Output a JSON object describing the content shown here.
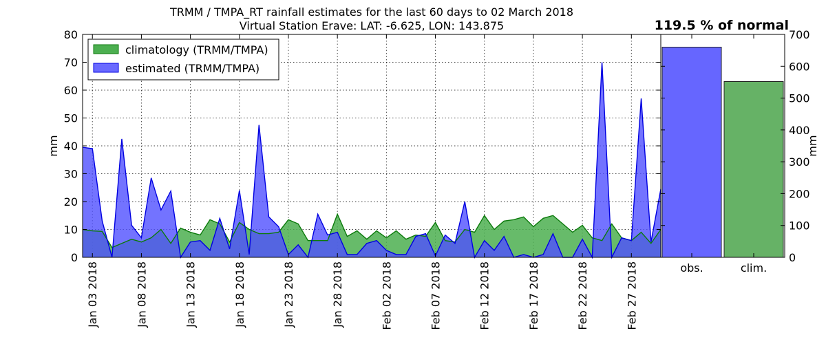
{
  "header": {
    "title_line1": "TRMM / TMPA_RT rainfall estimates for the last 60 days to 02 March 2018",
    "title_line2": "Virtual Station Erave: LAT: -6.625, LON: 143.875",
    "percent_label": "119.5 % of normal"
  },
  "colors": {
    "climatology_fill": "#4caf50",
    "climatology_line": "#0b7a0b",
    "estimated_fill": "#5050ff",
    "estimated_line": "#0000e0"
  },
  "chart_data": [
    {
      "type": "area",
      "ylabel": "mm",
      "ylim": [
        0,
        80
      ],
      "yticks": [
        0,
        10,
        20,
        30,
        40,
        50,
        60,
        70,
        80
      ],
      "grid": true,
      "legend_position": "top-left",
      "start_date": "2018-01-02",
      "xtick_labels": [
        "Jan 03 2018",
        "Jan 08 2018",
        "Jan 13 2018",
        "Jan 18 2018",
        "Jan 23 2018",
        "Jan 28 2018",
        "Feb 02 2018",
        "Feb 07 2018",
        "Feb 12 2018",
        "Feb 17 2018",
        "Feb 22 2018",
        "Feb 27 2018"
      ],
      "series": [
        {
          "name": "climatology (TRMM/TMPA)",
          "values": [
            10,
            9.5,
            9.3,
            3.5,
            5,
            6.5,
            5.5,
            7,
            10,
            5,
            10.5,
            9,
            8,
            13.5,
            12,
            5.5,
            12.5,
            10,
            8.5,
            8.5,
            9,
            13.5,
            12,
            6,
            6,
            6,
            15.5,
            7.5,
            9.5,
            6.5,
            9.5,
            7,
            9.5,
            6.5,
            8,
            7.5,
            12.5,
            6,
            5.5,
            10,
            9,
            15,
            10,
            13,
            13.5,
            14.5,
            11,
            14,
            15,
            12,
            9,
            11.5,
            7,
            6,
            12,
            7,
            6,
            9,
            5,
            10
          ]
        },
        {
          "name": "estimated (TRMM/TMPA)",
          "values": [
            39.5,
            39,
            13,
            0,
            42.5,
            11.5,
            7,
            28.5,
            17,
            23.8,
            0,
            5.5,
            6,
            2.5,
            14,
            3,
            24,
            1,
            47.5,
            14.5,
            11,
            1,
            4.5,
            0,
            15.5,
            8,
            9,
            1,
            1,
            5,
            6,
            2.5,
            1,
            1,
            7.5,
            8.5,
            0.5,
            8,
            5,
            20,
            0,
            6,
            2.5,
            7.5,
            0,
            1,
            0,
            1,
            8.5,
            0,
            0,
            6.5,
            0,
            70,
            0,
            7,
            6,
            57,
            5.5,
            24.5
          ]
        }
      ]
    },
    {
      "type": "bar",
      "categories": [
        "obs.",
        "clim."
      ],
      "values": [
        660,
        552
      ],
      "ylabel": "mm",
      "ylim": [
        0,
        700
      ],
      "yticks": [
        0,
        100,
        200,
        300,
        400,
        500,
        600,
        700
      ],
      "colors": [
        "#6666ff",
        "#66b266"
      ]
    }
  ]
}
